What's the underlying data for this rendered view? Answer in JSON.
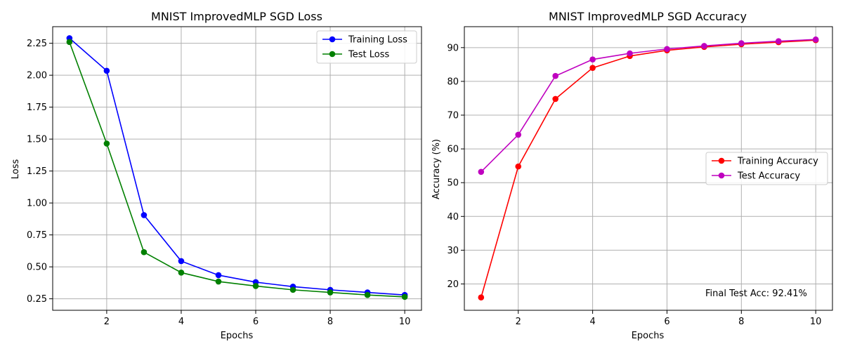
{
  "chart_data": [
    {
      "type": "line",
      "title": "MNIST ImprovedMLP SGD Loss",
      "xlabel": "Epochs",
      "ylabel": "Loss",
      "xlim": [
        0.55,
        10.45
      ],
      "ylim": [
        0.16,
        2.38
      ],
      "x_ticks": [
        2,
        4,
        6,
        8,
        10
      ],
      "x_tick_labels": [
        "2",
        "4",
        "6",
        "8",
        "10"
      ],
      "y_ticks": [
        0.25,
        0.5,
        0.75,
        1.0,
        1.25,
        1.5,
        1.75,
        2.0,
        2.25
      ],
      "y_tick_labels": [
        "0.25",
        "0.50",
        "0.75",
        "1.00",
        "1.25",
        "1.50",
        "1.75",
        "2.00",
        "2.25"
      ],
      "grid": true,
      "legend": "top-right",
      "x": [
        1,
        2,
        3,
        4,
        5,
        6,
        7,
        8,
        9,
        10
      ],
      "series": [
        {
          "name": "Training Loss",
          "color": "#0000ff",
          "values": [
            2.29,
            2.035,
            0.905,
            0.545,
            0.435,
            0.38,
            0.345,
            0.32,
            0.3,
            0.28
          ]
        },
        {
          "name": "Test Loss",
          "color": "#008000",
          "values": [
            2.26,
            1.465,
            0.615,
            0.455,
            0.385,
            0.35,
            0.32,
            0.3,
            0.28,
            0.265
          ]
        }
      ],
      "annotation": ""
    },
    {
      "type": "line",
      "title": "MNIST ImprovedMLP SGD Accuracy",
      "xlabel": "Epochs",
      "ylabel": "Accuracy (%)",
      "xlim": [
        0.55,
        10.45
      ],
      "ylim": [
        12.2,
        96.2
      ],
      "x_ticks": [
        2,
        4,
        6,
        8,
        10
      ],
      "x_tick_labels": [
        "2",
        "4",
        "6",
        "8",
        "10"
      ],
      "y_ticks": [
        20,
        30,
        40,
        50,
        60,
        70,
        80,
        90
      ],
      "y_tick_labels": [
        "20",
        "30",
        "40",
        "50",
        "60",
        "70",
        "80",
        "90"
      ],
      "grid": true,
      "legend": "center-right",
      "x": [
        1,
        2,
        3,
        4,
        5,
        6,
        7,
        8,
        9,
        10
      ],
      "series": [
        {
          "name": "Training Accuracy",
          "color": "#ff0000",
          "values": [
            16.0,
            54.8,
            74.8,
            84.0,
            87.5,
            89.2,
            90.2,
            91.0,
            91.6,
            92.2
          ]
        },
        {
          "name": "Test Accuracy",
          "color": "#bf00bf",
          "values": [
            53.2,
            64.2,
            81.6,
            86.5,
            88.3,
            89.6,
            90.5,
            91.3,
            91.9,
            92.41
          ]
        }
      ],
      "annotation": "Final Test Acc: 92.41%"
    }
  ]
}
